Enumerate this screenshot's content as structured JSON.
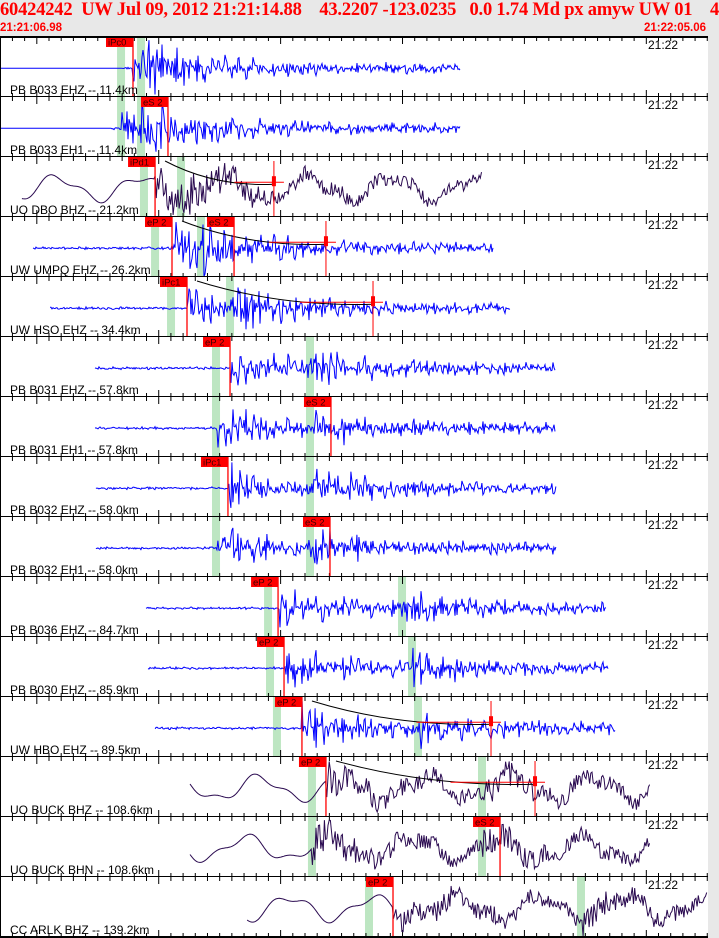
{
  "header": {
    "title": "60424242  UW Jul 09, 2012 21:21:14.88    43.2207 -123.0235   0.0 1.74 Md px amyw UW 01    4",
    "start_time": "21:21:06.98",
    "end_time": "21:22:05.06",
    "minute_label": "21:22"
  },
  "colors": {
    "header_text": "#ff0000",
    "short_period_trace": "#0000ff",
    "broadband_trace": "#2a0a50",
    "pick": "#ff0000",
    "predicted_phase": "#bde6c2",
    "panel_bg": "#ffffff",
    "header_bg": "#e8e8e8"
  },
  "traces": [
    {
      "label": "PB B033 EHZ -- 11.4km",
      "type": "sp",
      "picks": [
        {
          "text": "iPc0",
          "time": "21:21:17.89"
        }
      ],
      "pred": [
        "21:21:16.91",
        "21:21:18.55"
      ],
      "begin": "21:21:06.98",
      "coda": null
    },
    {
      "label": "PB B033 EH1 -- 11.4km",
      "type": "sp",
      "picks": [
        {
          "text": "eS 2",
          "time": "21:21:20.76"
        }
      ],
      "pred": [
        "21:21:16.91",
        "21:21:18.55"
      ],
      "begin": "21:21:06.98",
      "coda": null
    },
    {
      "label": "UO DBO BHZ -- 21.2km",
      "type": "bb",
      "picks": [
        {
          "text": "iPd1",
          "time": "21:21:19.70"
        }
      ],
      "pred": [
        "21:21:18.79",
        "21:21:21.83"
      ],
      "begin": "21:21:08.78",
      "coda": "21:21:29.45"
    },
    {
      "label": "UW UMPQ EHZ -- 26.2km",
      "type": "sp",
      "picks": [
        {
          "text": "eP 2",
          "time": "21:21:21.09"
        },
        {
          "text": "eS 2",
          "time": "21:21:26.18"
        }
      ],
      "pred": [
        "21:21:19.70",
        "21:21:23.47"
      ],
      "begin": "21:21:09.69",
      "coda": "21:21:33.72"
    },
    {
      "label": "UW HSO EHZ -- 34.4km",
      "type": "sp",
      "picks": [
        {
          "text": "iPc1",
          "time": "21:21:22.32"
        }
      ],
      "pred": [
        "21:21:21.01",
        "21:21:25.85"
      ],
      "begin": "21:21:11.08",
      "coda": "21:21:37.58"
    },
    {
      "label": "PB B031 EHZ -- 57.8km",
      "type": "sp",
      "picks": [
        {
          "text": "eP 2",
          "time": "21:21:25.85"
        }
      ],
      "pred": [
        "21:21:24.70",
        "21:21:32.41"
      ],
      "begin": "21:21:14.77",
      "coda": null
    },
    {
      "label": "PB B031 EH1 -- 57.8km",
      "type": "sp",
      "picks": [
        {
          "text": "eS 2",
          "time": "21:21:34.13"
        }
      ],
      "pred": [
        "21:21:24.70",
        "21:21:32.41"
      ],
      "begin": "21:21:14.77",
      "coda": null
    },
    {
      "label": "PB B032 EHZ -- 58.0km",
      "type": "sp",
      "picks": [
        {
          "text": "iPc1",
          "time": "21:21:25.68"
        }
      ],
      "pred": [
        "21:21:24.70",
        "21:21:32.41"
      ],
      "begin": "21:21:14.85",
      "coda": null
    },
    {
      "label": "PB B032 EH1 -- 58.0km",
      "type": "sp",
      "picks": [
        {
          "text": "eS 2",
          "time": "21:21:34.05"
        }
      ],
      "pred": [
        "21:21:24.70",
        "21:21:32.41"
      ],
      "begin": "21:21:14.85",
      "coda": null
    },
    {
      "label": "PB B036 EHZ -- 84.7km",
      "type": "sp",
      "picks": [
        {
          "text": "eP 2",
          "time": "21:21:29.79"
        }
      ],
      "pred": [
        "21:21:28.97",
        "21:21:39.96"
      ],
      "begin": "21:21:18.96",
      "coda": null
    },
    {
      "label": "PB B030 EHZ -- 85.9km",
      "type": "sp",
      "picks": [
        {
          "text": "eP 2",
          "time": "21:21:30.28"
        }
      ],
      "pred": [
        "21:21:29.13",
        "21:21:40.78"
      ],
      "begin": "21:21:19.12",
      "coda": null
    },
    {
      "label": "UW HBO EHZ -- 89.5km",
      "type": "sp",
      "picks": [
        {
          "text": "eP 2",
          "time": "21:21:31.75"
        }
      ],
      "pred": [
        "21:21:29.70",
        "21:21:41.27"
      ],
      "begin": "21:21:19.70",
      "coda": "21:21:47.26"
    },
    {
      "label": "UO BUCK BHZ -- 108.6km",
      "type": "bb",
      "picks": [
        {
          "text": "eP 2",
          "time": "21:21:33.72"
        }
      ],
      "pred": [
        "21:21:32.57",
        "21:21:46.52"
      ],
      "begin": "21:21:22.57",
      "coda": "21:21:50.87"
    },
    {
      "label": "UO BUCK BHN -- 108.6km",
      "type": "bb",
      "picks": [
        {
          "text": "eS 2",
          "time": "21:21:48.00"
        }
      ],
      "pred": [
        "21:21:32.57",
        "21:21:46.52"
      ],
      "begin": "21:21:22.57",
      "coda": null
    },
    {
      "label": "CC ARLK BHZ -- 139.2km",
      "type": "bb",
      "picks": [
        {
          "text": "eP 2",
          "time": "21:21:39.22"
        }
      ],
      "pred": [
        "21:21:37.25",
        "21:21:54.64"
      ],
      "begin": "21:21:27.25",
      "coda": null
    }
  ]
}
